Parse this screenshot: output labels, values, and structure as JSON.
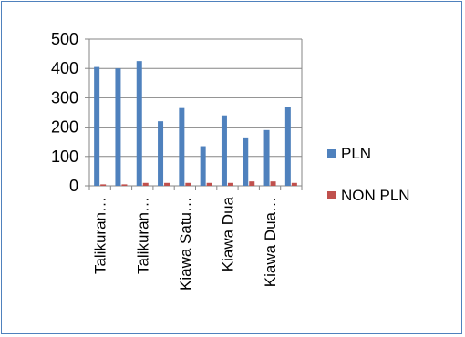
{
  "chart_data": {
    "type": "bar",
    "categories": [
      "Talikuran…",
      "",
      "Talikuran…",
      "",
      "Kiawa Satu…",
      "",
      "Kiawa Dua",
      "",
      "Kiawa Dua…",
      ""
    ],
    "series": [
      {
        "name": "PLN",
        "color": "#4f81bd",
        "values": [
          405,
          400,
          425,
          220,
          265,
          135,
          240,
          165,
          190,
          270
        ]
      },
      {
        "name": "NON PLN",
        "color": "#c0504d",
        "values": [
          5,
          5,
          10,
          10,
          10,
          10,
          10,
          15,
          15,
          10
        ]
      }
    ],
    "yticks": [
      "0",
      "100",
      "200",
      "300",
      "400",
      "500"
    ],
    "ylim": [
      0,
      500
    ],
    "grid": true,
    "legend_position": "right"
  }
}
